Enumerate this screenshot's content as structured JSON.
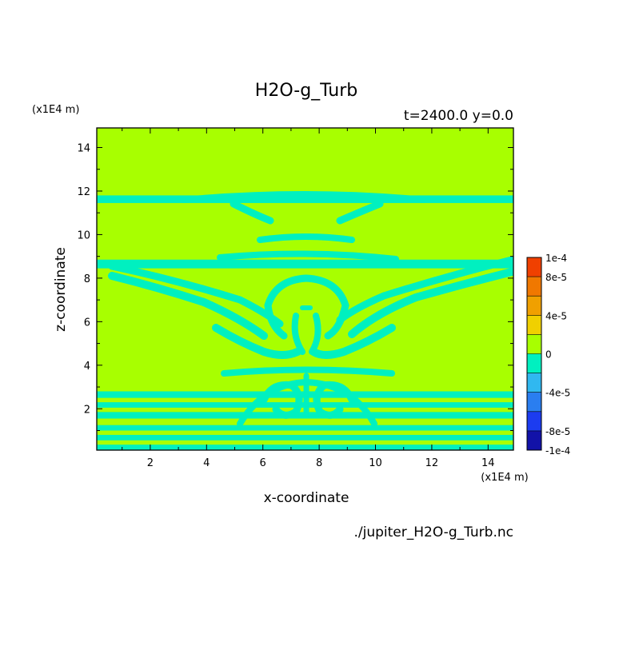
{
  "chart_data": {
    "type": "heatmap",
    "title": "H2O-g_Turb",
    "subtitle": "t=2400.0 y=0.0",
    "xlabel": "x-coordinate",
    "ylabel": "z-coordinate",
    "x_units": "(x1E4 m)",
    "y_units": "(x1E4 m)",
    "xlim": [
      0.1,
      14.9
    ],
    "ylim": [
      0.1,
      14.9
    ],
    "xticks": [
      2,
      4,
      6,
      8,
      10,
      12,
      14
    ],
    "yticks": [
      2,
      4,
      6,
      8,
      10,
      12,
      14
    ],
    "colorbar": {
      "levels": [
        -0.0001,
        -8e-05,
        -6e-05,
        -4e-05,
        -2e-05,
        0,
        2e-05,
        4e-05,
        6e-05,
        8e-05,
        0.0001
      ],
      "colors": [
        "#1212a8",
        "#1c3cf0",
        "#2a7ef0",
        "#30b8f0",
        "#00f0c0",
        "#a8ff00",
        "#f0d000",
        "#f0a000",
        "#f07800",
        "#f04000"
      ],
      "labels": [
        {
          "v": 0.0001,
          "t": "1e-4"
        },
        {
          "v": 8e-05,
          "t": "8e-5"
        },
        {
          "v": 4e-05,
          "t": "4e-5"
        },
        {
          "v": 0,
          "t": "0"
        },
        {
          "v": -4e-05,
          "t": "-4e-5"
        },
        {
          "v": -8e-05,
          "t": "-8e-5"
        },
        {
          "v": -0.0001,
          "t": "-1e-4"
        }
      ]
    },
    "field": {
      "background_value": "0",
      "background_color": "#a8ff00",
      "negative_color": "#00f0c0",
      "bands_z": [
        [
          0.1,
          0.35
        ],
        [
          0.55,
          0.8
        ],
        [
          1.0,
          1.25
        ],
        [
          1.55,
          1.85
        ],
        [
          2.05,
          2.3
        ],
        [
          2.5,
          2.8
        ],
        [
          11.45,
          11.8
        ],
        [
          8.45,
          8.85
        ]
      ]
    },
    "file": "./jupiter_H2O-g_Turb.nc"
  }
}
